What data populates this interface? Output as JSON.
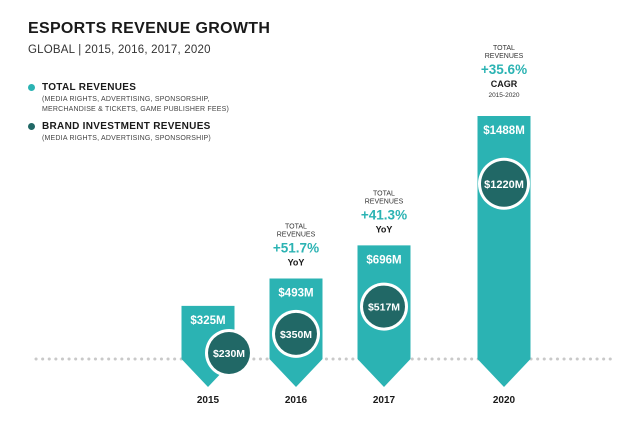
{
  "chart_data": {
    "type": "bar",
    "title": "ESPORTS REVENUE GROWTH",
    "subtitle": "GLOBAL | 2015, 2016, 2017, 2020",
    "categories": [
      "2015",
      "2016",
      "2017",
      "2020"
    ],
    "series": [
      {
        "name": "TOTAL REVENUES",
        "description_line1": "(MEDIA RIGHTS, ADVERTISING, SPONSORSHIP,",
        "description_line2": "MERCHANDISE & TICKETS, GAME PUBLISHER FEES)",
        "color": "#2bb3b3",
        "values": [
          325,
          493,
          696,
          1488
        ],
        "value_labels": [
          "$325M",
          "$493M",
          "$696M",
          "$1488M"
        ]
      },
      {
        "name": "BRAND INVESTMENT REVENUES",
        "description_line1": "(MEDIA RIGHTS, ADVERTISING, SPONSORSHIP)",
        "color": "#216866",
        "values": [
          230,
          350,
          517,
          1220
        ],
        "value_labels": [
          "$230M",
          "$350M",
          "$517M",
          "$1220M"
        ]
      }
    ],
    "annotations": [
      {
        "category": "2016",
        "line1": "TOTAL",
        "line2": "REVENUES",
        "value": "+51.7%",
        "unit": "YoY"
      },
      {
        "category": "2017",
        "line1": "TOTAL",
        "line2": "REVENUES",
        "value": "+41.3%",
        "unit": "YoY"
      },
      {
        "category": "2020",
        "line1": "TOTAL",
        "line2": "REVENUES",
        "value": "+35.6%",
        "unit": "CAGR",
        "range": "2015-2020"
      }
    ],
    "ylim": [
      0,
      1600
    ]
  },
  "colors": {
    "accent": "#2bb3b3",
    "dark": "#216866",
    "label": "#1a1a1a"
  }
}
